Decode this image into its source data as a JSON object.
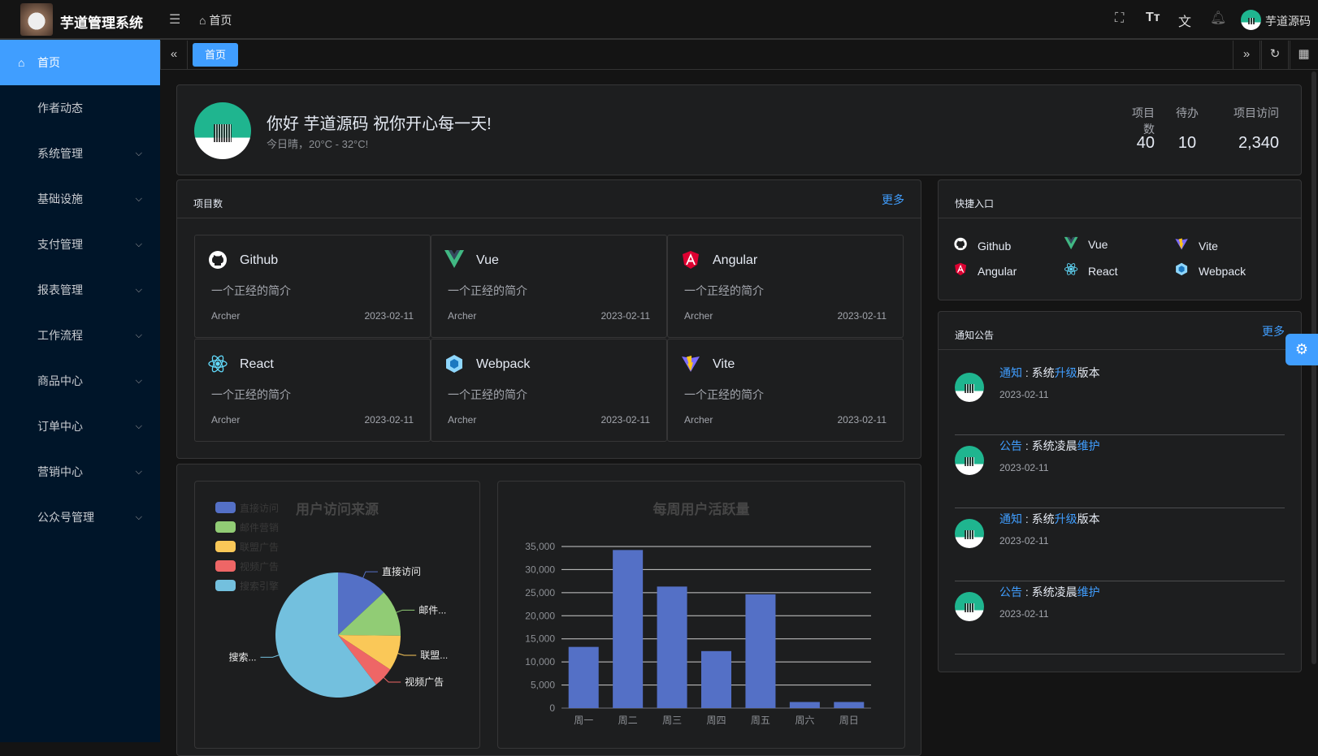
{
  "header": {
    "app_title": "芋道管理系统",
    "breadcrumb": "首页",
    "user_name": "芋道源码"
  },
  "sidebar": {
    "items": [
      {
        "label": "首页",
        "active": true
      },
      {
        "label": "作者动态"
      },
      {
        "label": "系统管理",
        "expandable": true
      },
      {
        "label": "基础设施",
        "expandable": true
      },
      {
        "label": "支付管理",
        "expandable": true
      },
      {
        "label": "报表管理",
        "expandable": true
      },
      {
        "label": "工作流程",
        "expandable": true
      },
      {
        "label": "商品中心",
        "expandable": true
      },
      {
        "label": "订单中心",
        "expandable": true
      },
      {
        "label": "营销中心",
        "expandable": true
      },
      {
        "label": "公众号管理",
        "expandable": true
      }
    ]
  },
  "tabs": [
    {
      "label": "首页",
      "active": true
    }
  ],
  "welcome": {
    "greeting": "你好 芋道源码 祝你开心每一天!",
    "weather": "今日晴，20°C - 32°C!",
    "stats": [
      {
        "label": "项目数",
        "value": "40"
      },
      {
        "label": "待办",
        "value": "10"
      },
      {
        "label": "项目访问",
        "value": "2,340"
      }
    ]
  },
  "projects": {
    "title": "项目数",
    "more": "更多",
    "items": [
      {
        "name": "Github",
        "icon": "github-icon",
        "desc": "一个正经的简介",
        "author": "Archer",
        "date": "2023-02-11"
      },
      {
        "name": "Vue",
        "icon": "vue-icon",
        "desc": "一个正经的简介",
        "author": "Archer",
        "date": "2023-02-11"
      },
      {
        "name": "Angular",
        "icon": "angular-icon",
        "desc": "一个正经的简介",
        "author": "Archer",
        "date": "2023-02-11"
      },
      {
        "name": "React",
        "icon": "react-icon",
        "desc": "一个正经的简介",
        "author": "Archer",
        "date": "2023-02-11"
      },
      {
        "name": "Webpack",
        "icon": "webpack-icon",
        "desc": "一个正经的简介",
        "author": "Archer",
        "date": "2023-02-11"
      },
      {
        "name": "Vite",
        "icon": "vite-icon",
        "desc": "一个正经的简介",
        "author": "Archer",
        "date": "2023-02-11"
      }
    ]
  },
  "quick_entry": {
    "title": "快捷入口",
    "items": [
      {
        "name": "Github"
      },
      {
        "name": "Vue"
      },
      {
        "name": "Vite"
      },
      {
        "name": "Angular"
      },
      {
        "name": "React"
      },
      {
        "name": "Webpack"
      }
    ]
  },
  "notices": {
    "title": "通知公告",
    "more": "更多",
    "items": [
      {
        "type": "通知",
        "pre": "系统",
        "hl": "升级",
        "post": "版本",
        "date": "2023-02-11"
      },
      {
        "type": "公告",
        "pre": "系统凌晨",
        "hl": "维护",
        "post": "",
        "date": "2023-02-11"
      },
      {
        "type": "通知",
        "pre": "系统",
        "hl": "升级",
        "post": "版本",
        "date": "2023-02-11"
      },
      {
        "type": "公告",
        "pre": "系统凌晨",
        "hl": "维护",
        "post": "",
        "date": "2023-02-11"
      }
    ]
  },
  "colors": {
    "accent": "#409eff",
    "sidebar_bg": "#001529"
  },
  "chart_data": [
    {
      "type": "pie",
      "title": "用户访问来源",
      "legend_position": "top-left",
      "categories": [
        "直接访问",
        "邮件营销",
        "联盟广告",
        "视频广告",
        "搜索引擎"
      ],
      "labels": [
        "直接访问",
        "邮件...",
        "联盟...",
        "视频广告",
        "搜索..."
      ],
      "values": [
        335,
        310,
        234,
        135,
        1548
      ],
      "colors": [
        "#5470c6",
        "#91cc75",
        "#fac858",
        "#ee6666",
        "#73c0de"
      ]
    },
    {
      "type": "bar",
      "title": "每周用户活跃量",
      "categories": [
        "周一",
        "周二",
        "周三",
        "周四",
        "周五",
        "周六",
        "周日"
      ],
      "values": [
        13253,
        34235,
        26321,
        12340,
        24643,
        1322,
        1324
      ],
      "ylim": [
        0,
        35000
      ],
      "yticks": [
        "0",
        "5,000",
        "10,000",
        "15,000",
        "20,000",
        "25,000",
        "30,000",
        "35,000"
      ],
      "grid": true,
      "color": "#5470c6"
    }
  ]
}
